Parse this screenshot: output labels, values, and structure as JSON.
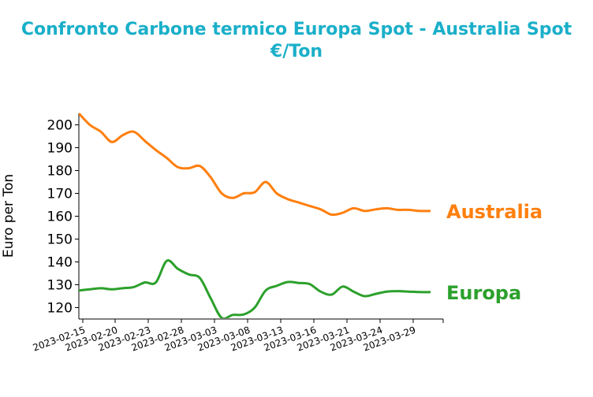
{
  "chart_data": {
    "type": "line",
    "title": "Confronto Carbone termico Europa Spot - Australia Spot",
    "subtitle": "€/Ton",
    "xlabel": "",
    "ylabel": "Euro per Ton",
    "ylim": [
      115,
      205
    ],
    "yticks": [
      120,
      130,
      140,
      150,
      160,
      170,
      180,
      190,
      200
    ],
    "xticks": [
      "2023-02-15",
      "2023-02-20",
      "2023-02-23",
      "2023-02-28",
      "2023-03-03",
      "2023-03-08",
      "2023-03-13",
      "2023-03-16",
      "2023-03-21",
      "2023-03-24",
      "2023-03-29"
    ],
    "legend": "none",
    "grid": false,
    "colors": {
      "title": "#1aafc9",
      "Australia": "#ff7f0e",
      "Europa": "#2ca02c"
    },
    "series": [
      {
        "name": "Australia",
        "values": [
          205,
          200,
          197,
          192.5,
          195.5,
          197,
          193,
          189,
          185.5,
          181.5,
          181,
          182,
          177,
          170,
          168,
          170,
          170.5,
          175,
          170,
          167.5,
          166,
          164.5,
          163,
          160.7,
          161.5,
          163.5,
          162.3,
          163,
          163.5,
          162.8,
          162.8,
          162.3,
          162.3
        ]
      },
      {
        "name": "Europa",
        "values": [
          127.5,
          128,
          128.5,
          128,
          128.5,
          129,
          131,
          131,
          140.5,
          137,
          134.5,
          133,
          124,
          115.5,
          116.8,
          117,
          120,
          127.5,
          129.5,
          131.2,
          130.8,
          130.3,
          127,
          125.7,
          129.2,
          127,
          125,
          126,
          127,
          127.2,
          127,
          126.8,
          126.8
        ]
      }
    ]
  }
}
